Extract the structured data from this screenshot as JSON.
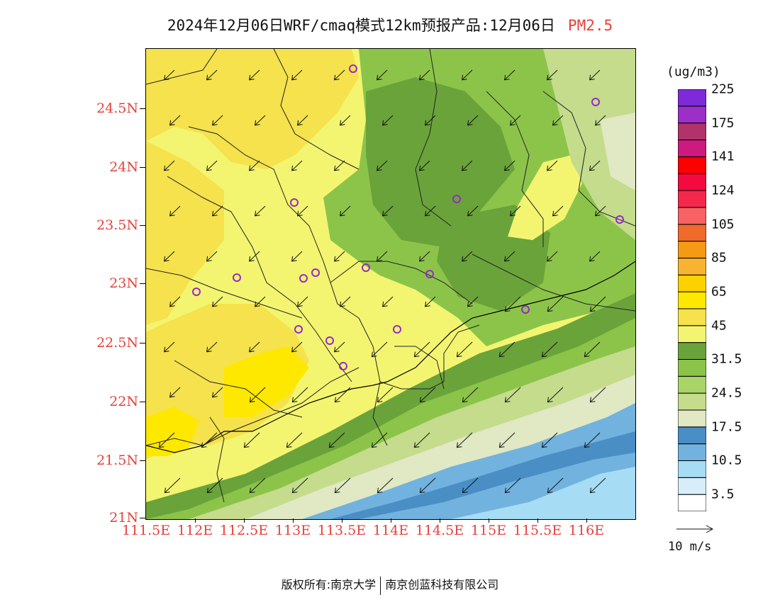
{
  "title": {
    "main": "2024年12月06日WRF/cmaq模式12km预报产品:12月06日",
    "product": "PM2.5"
  },
  "map": {
    "lat_labels": [
      "21N",
      "21.5N",
      "22N",
      "22.5N",
      "23N",
      "23.5N",
      "24N",
      "24.5N"
    ],
    "lon_labels": [
      "111.5E",
      "112E",
      "112.5E",
      "113E",
      "113.5E",
      "114E",
      "114.5E",
      "115E",
      "115.5E",
      "116E"
    ],
    "lat_range": [
      21.0,
      25.0
    ],
    "lon_range": [
      111.5,
      116.5
    ],
    "wind_direction": "northeasterly (arrows pointing to south-west)",
    "station_marker_color": "#9b27c9",
    "station_count": 16
  },
  "colorbar": {
    "unit": "(ug/m3)",
    "colors": [
      "#ffffff",
      "#d7eef8",
      "#a7dcf5",
      "#72b2de",
      "#4a8ec6",
      "#e0e8c4",
      "#c4dc8c",
      "#a9d468",
      "#8cc44a",
      "#6aa33a",
      "#f3f570",
      "#f5e24c",
      "#ffe800",
      "#fbd100",
      "#f8b430",
      "#f59a14",
      "#f06a2a",
      "#f76364",
      "#f5284c",
      "#f50a40",
      "#fe0000",
      "#cd1a7e",
      "#b0336a",
      "#9b2fc7",
      "#7f2ad8"
    ],
    "labels": [
      "3.5",
      "10.5",
      "17.5",
      "24.5",
      "31.5",
      "45",
      "65",
      "85",
      "105",
      "124",
      "141",
      "175",
      "225"
    ]
  },
  "reference_vector": {
    "label": "10 m/s"
  },
  "footer": {
    "left": "版权所有:南京大学",
    "right": "南京创蓝科技有限公司"
  }
}
